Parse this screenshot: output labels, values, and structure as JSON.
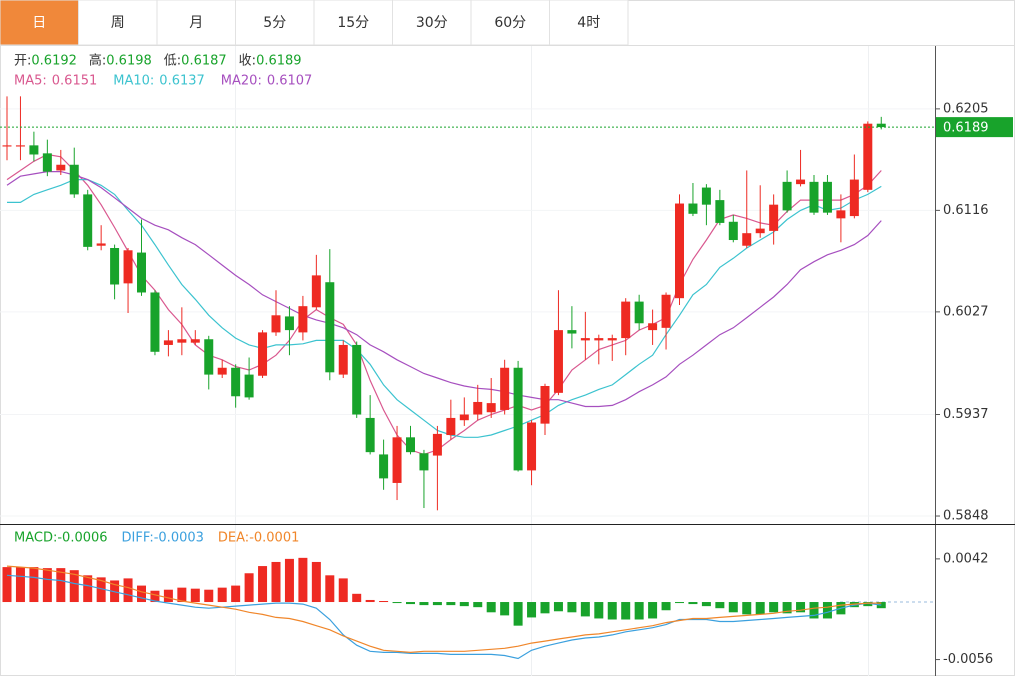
{
  "tabs": {
    "items": [
      "日",
      "周",
      "月",
      "5分",
      "15分",
      "30分",
      "60分",
      "4时"
    ],
    "active": 0
  },
  "chart_data": [
    {
      "type": "candlestick",
      "ohlc_labels": [
        "开:",
        "高:",
        "低:",
        "收:"
      ],
      "open": [
        0.6172,
        0.6172,
        0.6173,
        0.6166,
        0.6151,
        0.6156,
        0.613,
        0.6085,
        0.6083,
        0.6052,
        0.6079,
        0.6044,
        0.5998,
        0.6,
        0.6,
        0.6003,
        0.5972,
        0.5978,
        0.5972,
        0.5971,
        0.6009,
        0.6023,
        0.6009,
        0.6031,
        0.6053,
        0.5972,
        0.5998,
        0.5934,
        0.5902,
        0.5877,
        0.5917,
        0.5903,
        0.5901,
        0.5919,
        0.5932,
        0.5937,
        0.5939,
        0.5941,
        0.5978,
        0.5888,
        0.5929,
        0.5956,
        0.6011,
        0.6002,
        0.6002,
        0.6002,
        0.6004,
        0.6036,
        0.6011,
        0.6013,
        0.6039,
        0.6122,
        0.6136,
        0.6125,
        0.6106,
        0.6085,
        0.6096,
        0.6098,
        0.6141,
        0.6139,
        0.6141,
        0.6141,
        0.6109,
        0.6111,
        0.6134,
        0.6192
      ],
      "high": [
        0.6216,
        0.6216,
        0.6185,
        0.6178,
        0.6169,
        0.6171,
        0.6134,
        0.6103,
        0.6086,
        0.6083,
        0.6108,
        0.6046,
        0.6011,
        0.6031,
        0.6011,
        0.6006,
        0.5985,
        0.5981,
        0.5987,
        0.6011,
        0.6046,
        0.6032,
        0.6041,
        0.6077,
        0.6082,
        0.6002,
        0.6001,
        0.5954,
        0.5915,
        0.5927,
        0.5927,
        0.5906,
        0.5927,
        0.595,
        0.5952,
        0.5963,
        0.5969,
        0.5985,
        0.5984,
        0.5932,
        0.5964,
        0.6046,
        0.6032,
        0.6027,
        0.6007,
        0.6007,
        0.6039,
        0.6042,
        0.6029,
        0.6044,
        0.613,
        0.614,
        0.6139,
        0.6134,
        0.6112,
        0.6151,
        0.6138,
        0.613,
        0.6151,
        0.6169,
        0.6147,
        0.6147,
        0.613,
        0.6165,
        0.6194,
        0.6198
      ],
      "low": [
        0.616,
        0.616,
        0.6159,
        0.6146,
        0.6147,
        0.6127,
        0.6081,
        0.6081,
        0.6038,
        0.6026,
        0.6041,
        0.5989,
        0.5988,
        0.5989,
        0.5998,
        0.5959,
        0.5969,
        0.5943,
        0.595,
        0.5969,
        0.6006,
        0.5989,
        0.6002,
        0.6029,
        0.5967,
        0.5969,
        0.5934,
        0.5902,
        0.5871,
        0.5862,
        0.5902,
        0.5855,
        0.5853,
        0.5915,
        0.5927,
        0.5932,
        0.5934,
        0.5937,
        0.5887,
        0.5875,
        0.5919,
        0.5954,
        0.5995,
        0.5985,
        0.5981,
        0.5984,
        0.5989,
        0.6011,
        0.5998,
        0.5994,
        0.6033,
        0.6111,
        0.6103,
        0.6103,
        0.6088,
        0.6083,
        0.6092,
        0.6086,
        0.6114,
        0.6137,
        0.6112,
        0.6112,
        0.6088,
        0.6109,
        0.6132,
        0.6187
      ],
      "close": [
        0.6173,
        0.6173,
        0.6165,
        0.615,
        0.6156,
        0.613,
        0.6084,
        0.6087,
        0.6051,
        0.6081,
        0.6044,
        0.5992,
        0.6002,
        0.6003,
        0.6003,
        0.5972,
        0.5978,
        0.5953,
        0.5952,
        0.6009,
        0.6024,
        0.6011,
        0.6032,
        0.6059,
        0.5974,
        0.5998,
        0.5937,
        0.5904,
        0.5881,
        0.5917,
        0.5904,
        0.5888,
        0.592,
        0.5934,
        0.5937,
        0.5948,
        0.5947,
        0.5978,
        0.5888,
        0.593,
        0.5962,
        0.6011,
        0.6008,
        0.6004,
        0.6004,
        0.6004,
        0.6036,
        0.6017,
        0.6017,
        0.6042,
        0.6122,
        0.6113,
        0.6121,
        0.6105,
        0.609,
        0.6096,
        0.61,
        0.6121,
        0.6116,
        0.6143,
        0.6114,
        0.6114,
        0.6116,
        0.6143,
        0.6192,
        0.6189
      ],
      "up_color": "#ee2a22",
      "down_color": "#18a32b",
      "label_color": "#333333",
      "series": [
        {
          "name": "MA5:",
          "color": "#d9588f",
          "values": [
            0.6143,
            0.6151,
            0.6159,
            0.6165,
            0.6163,
            0.6151,
            0.6138,
            0.6121,
            0.6101,
            0.608,
            0.6059,
            0.6046,
            0.6029,
            0.6016,
            0.5998,
            0.5989,
            0.5985,
            0.5979,
            0.5976,
            0.5981,
            0.5989,
            0.6002,
            0.602,
            0.6029,
            0.6022,
            0.6016,
            0.5998,
            0.5967,
            0.5941,
            0.5919,
            0.5906,
            0.5902,
            0.5906,
            0.5915,
            0.5923,
            0.5932,
            0.5937,
            0.5941,
            0.5945,
            0.5941,
            0.5945,
            0.5959,
            0.5976,
            0.5985,
            0.5994,
            0.5998,
            0.6002,
            0.6011,
            0.6016,
            0.6022,
            0.6051,
            0.6073,
            0.609,
            0.6108,
            0.6112,
            0.6109,
            0.6105,
            0.6103,
            0.6115,
            0.6125,
            0.6125,
            0.6125,
            0.6125,
            0.613,
            0.6138,
            0.6151
          ]
        },
        {
          "name": "MA10:",
          "color": "#3cc3cf",
          "values": [
            0.6123,
            0.6123,
            0.613,
            0.6134,
            0.6138,
            0.6143,
            0.6143,
            0.6138,
            0.613,
            0.6116,
            0.6103,
            0.6086,
            0.6068,
            0.6051,
            0.6038,
            0.6024,
            0.6013,
            0.6004,
            0.5998,
            0.5995,
            0.5998,
            0.5998,
            0.5999,
            0.6002,
            0.6002,
            0.6002,
            0.5994,
            0.5981,
            0.5963,
            0.595,
            0.5941,
            0.5932,
            0.5923,
            0.5919,
            0.5917,
            0.5917,
            0.5919,
            0.5923,
            0.5927,
            0.5932,
            0.5937,
            0.5945,
            0.595,
            0.5954,
            0.5959,
            0.5963,
            0.5972,
            0.5981,
            0.5989,
            0.6007,
            0.6024,
            0.6042,
            0.6051,
            0.6066,
            0.6074,
            0.6083,
            0.609,
            0.6097,
            0.6108,
            0.6116,
            0.6121,
            0.6116,
            0.6118,
            0.6125,
            0.613,
            0.6137
          ]
        },
        {
          "name": "MA20:",
          "color": "#a64fbf",
          "values": [
            0.6138,
            0.6146,
            0.6148,
            0.615,
            0.615,
            0.6147,
            0.6143,
            0.6136,
            0.6127,
            0.6118,
            0.6109,
            0.6103,
            0.6099,
            0.6092,
            0.6086,
            0.6077,
            0.6068,
            0.6059,
            0.6051,
            0.6042,
            0.6036,
            0.603,
            0.6024,
            0.602,
            0.6017,
            0.6013,
            0.6007,
            0.5998,
            0.5992,
            0.5985,
            0.5979,
            0.5973,
            0.5969,
            0.5965,
            0.5962,
            0.596,
            0.5959,
            0.5957,
            0.5954,
            0.5952,
            0.595,
            0.595,
            0.5947,
            0.5944,
            0.5944,
            0.5945,
            0.595,
            0.5957,
            0.5963,
            0.597,
            0.5981,
            0.5989,
            0.5998,
            0.6007,
            0.6013,
            0.6022,
            0.6031,
            0.604,
            0.6051,
            0.6064,
            0.6071,
            0.6077,
            0.6081,
            0.6086,
            0.6094,
            0.6107
          ]
        }
      ],
      "ylim": [
        0.5841,
        0.6261
      ],
      "yticks": [
        0.6205,
        0.6116,
        0.6027,
        0.5937,
        0.5848
      ]
    },
    {
      "type": "macd",
      "series": [
        {
          "name": "MACD:",
          "color": "#ee2a22",
          "negative_color": "#18a32b",
          "values": [
            0.0034,
            0.0034,
            0.0034,
            0.0033,
            0.0033,
            0.0031,
            0.0026,
            0.0024,
            0.0021,
            0.0023,
            0.0016,
            0.0011,
            0.0012,
            0.0014,
            0.0013,
            0.0012,
            0.0014,
            0.0016,
            0.0028,
            0.0035,
            0.0039,
            0.0042,
            0.0043,
            0.0039,
            0.0026,
            0.0023,
            0.0008,
            0.0002,
            0.0001,
            -0.0001,
            -0.0002,
            -0.0003,
            -0.0003,
            -0.0003,
            -0.0004,
            -0.0005,
            -0.001,
            -0.0013,
            -0.0023,
            -0.0015,
            -0.0011,
            -0.0009,
            -0.001,
            -0.0014,
            -0.0016,
            -0.0017,
            -0.0017,
            -0.0017,
            -0.0016,
            -0.0008,
            -0.0001,
            -0.0002,
            -0.0004,
            -0.0006,
            -0.001,
            -0.0012,
            -0.0012,
            -0.001,
            -0.0011,
            -0.001,
            -0.0016,
            -0.0016,
            -0.0012,
            -0.0005,
            -0.0004,
            -0.0006
          ]
        },
        {
          "name": "DIFF:",
          "color": "#3ba0de",
          "values": [
            0.0026,
            0.0025,
            0.0024,
            0.0022,
            0.0021,
            0.0018,
            0.0016,
            0.0013,
            0.001,
            0.0007,
            0.0004,
            0.0001,
            -0.0001,
            -0.0003,
            -0.0005,
            -0.0006,
            -0.0005,
            -0.0004,
            -0.0003,
            -0.0002,
            -0.0001,
            -0.0001,
            -0.0002,
            -0.0006,
            -0.0017,
            -0.0032,
            -0.0042,
            -0.0048,
            -0.0049,
            -0.0049,
            -0.005,
            -0.005,
            -0.005,
            -0.0051,
            -0.0051,
            -0.0051,
            -0.0051,
            -0.0052,
            -0.0055,
            -0.0047,
            -0.0043,
            -0.004,
            -0.0037,
            -0.0035,
            -0.0034,
            -0.0032,
            -0.0029,
            -0.0027,
            -0.0025,
            -0.0022,
            -0.0017,
            -0.0017,
            -0.0017,
            -0.0019,
            -0.0019,
            -0.0018,
            -0.0017,
            -0.0016,
            -0.0015,
            -0.0014,
            -0.0013,
            -0.001,
            -0.0006,
            -0.0003,
            -0.0001,
            -0.0003
          ]
        },
        {
          "name": "DEA:",
          "color": "#f0862a",
          "values": [
            0.0035,
            0.0034,
            0.0033,
            0.0031,
            0.0029,
            0.0027,
            0.0024,
            0.0021,
            0.0017,
            0.0014,
            0.001,
            0.0007,
            0.0004,
            0.0001,
            -0.0001,
            -0.0003,
            -0.0005,
            -0.0007,
            -0.001,
            -0.0012,
            -0.0015,
            -0.0016,
            -0.0019,
            -0.0023,
            -0.0027,
            -0.0033,
            -0.0038,
            -0.0043,
            -0.0047,
            -0.0048,
            -0.0049,
            -0.0048,
            -0.0048,
            -0.0048,
            -0.0048,
            -0.0047,
            -0.0046,
            -0.0045,
            -0.0043,
            -0.004,
            -0.0038,
            -0.0036,
            -0.0034,
            -0.0032,
            -0.0031,
            -0.0029,
            -0.0027,
            -0.0025,
            -0.0023,
            -0.002,
            -0.0018,
            -0.0016,
            -0.0016,
            -0.0015,
            -0.0014,
            -0.0013,
            -0.0012,
            -0.0011,
            -0.0009,
            -0.0008,
            -0.0006,
            -0.0005,
            -0.0003,
            -0.0002,
            -0.0001,
            -0.0001
          ]
        }
      ],
      "ylim": [
        -0.0072,
        0.0074
      ],
      "yticks": [
        0.0042,
        -0.0056
      ]
    }
  ]
}
